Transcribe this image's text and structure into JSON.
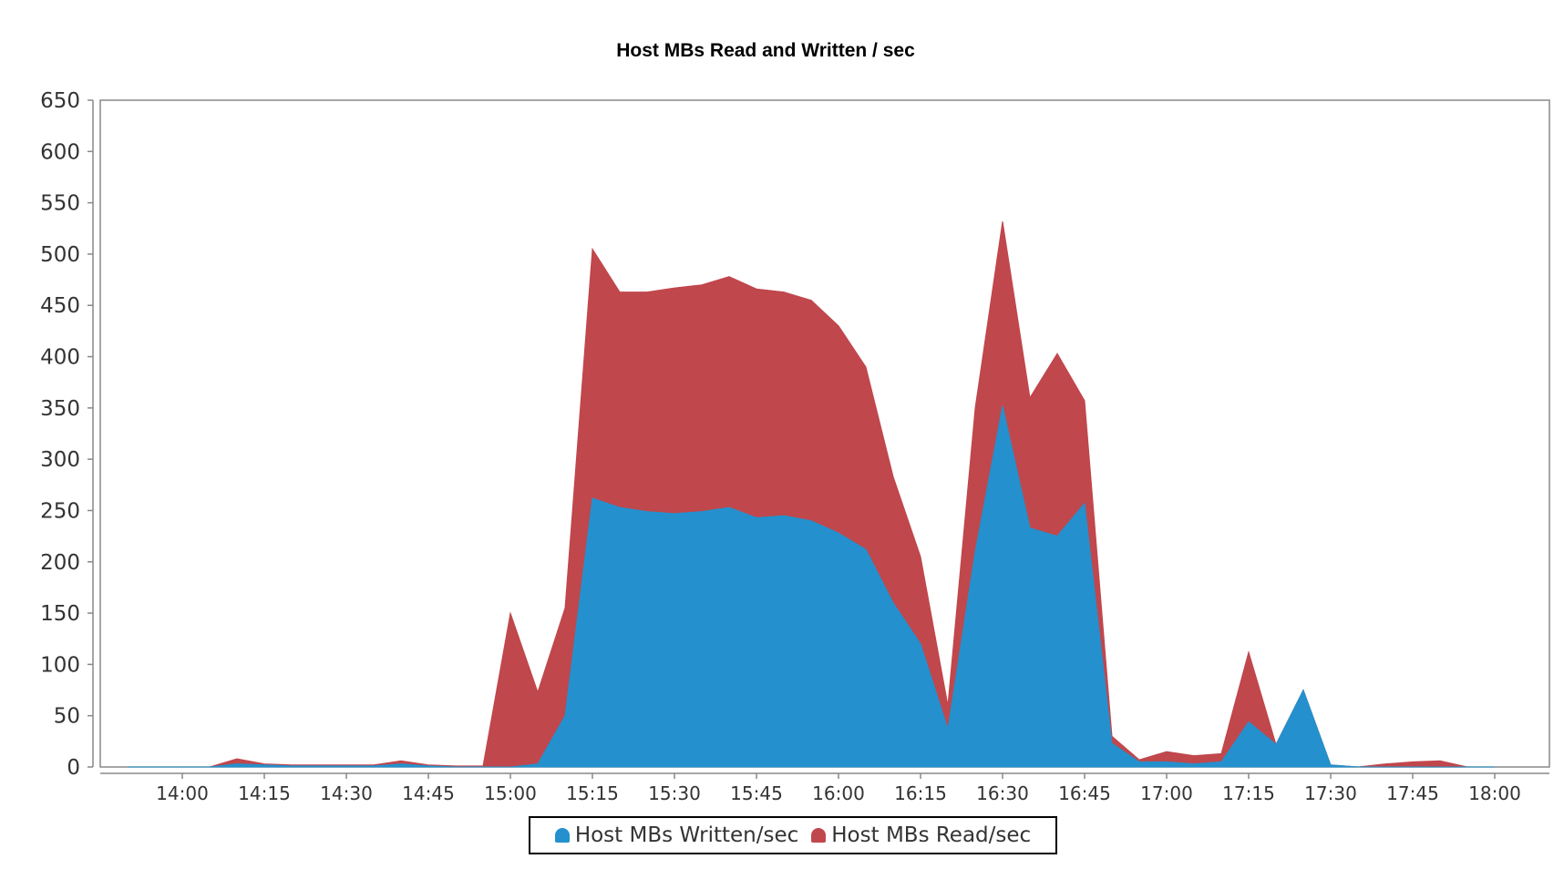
{
  "chart_data": {
    "type": "area",
    "stacked": true,
    "title": "Host MBs Read and Written / sec",
    "xlabel": "",
    "ylabel": "",
    "ylim": [
      0,
      650
    ],
    "yticks": [
      0,
      50,
      100,
      150,
      200,
      250,
      300,
      350,
      400,
      450,
      500,
      550,
      600,
      650
    ],
    "xlim": [
      "13:45",
      "18:10"
    ],
    "xticks": [
      "14:00",
      "14:15",
      "14:30",
      "14:45",
      "15:00",
      "15:15",
      "15:30",
      "15:45",
      "16:00",
      "16:15",
      "16:30",
      "16:45",
      "17:00",
      "17:15",
      "17:30",
      "17:45",
      "18:00"
    ],
    "legend_position": "bottom",
    "grid": false,
    "x": [
      "13:50",
      "13:55",
      "14:00",
      "14:05",
      "14:10",
      "14:15",
      "14:20",
      "14:25",
      "14:30",
      "14:35",
      "14:40",
      "14:45",
      "14:50",
      "14:55",
      "15:00",
      "15:05",
      "15:10",
      "15:15",
      "15:20",
      "15:25",
      "15:30",
      "15:35",
      "15:40",
      "15:45",
      "15:50",
      "15:55",
      "16:00",
      "16:05",
      "16:10",
      "16:15",
      "16:20",
      "16:25",
      "16:30",
      "16:35",
      "16:40",
      "16:45",
      "16:50",
      "16:55",
      "17:00",
      "17:05",
      "17:10",
      "17:15",
      "17:20",
      "17:25",
      "17:30",
      "17:35",
      "17:40",
      "17:45",
      "17:50",
      "17:55",
      "18:00"
    ],
    "series": [
      {
        "name": "Host MBs Written/sec",
        "color": "#2490cd",
        "values": [
          0,
          0,
          0,
          0,
          3,
          2,
          1,
          1,
          1,
          1,
          3,
          1,
          0,
          0,
          0,
          3,
          50,
          262,
          253,
          249,
          247,
          249,
          253,
          243,
          245,
          240,
          228,
          212,
          160,
          120,
          37,
          210,
          352,
          233,
          225,
          257,
          23,
          5,
          5,
          3,
          5,
          44,
          22,
          75,
          2,
          0,
          0,
          0,
          0,
          0,
          0
        ]
      },
      {
        "name": "Host MBs Read/sec",
        "color": "#c0474c",
        "values": [
          0,
          0,
          0,
          0,
          5,
          1,
          1,
          1,
          1,
          1,
          3,
          1,
          1,
          1,
          150,
          70,
          105,
          243,
          210,
          214,
          220,
          221,
          225,
          223,
          218,
          215,
          202,
          178,
          123,
          85,
          23,
          140,
          180,
          127,
          178,
          100,
          7,
          2,
          10,
          8,
          8,
          68,
          0,
          0,
          0,
          0,
          3,
          5,
          6,
          0,
          0
        ]
      }
    ]
  }
}
